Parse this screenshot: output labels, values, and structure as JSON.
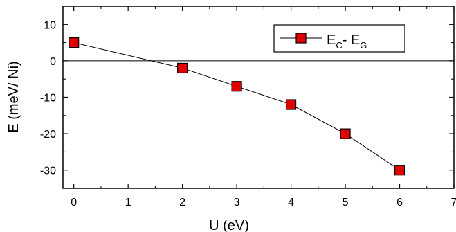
{
  "chart_data": {
    "type": "line",
    "xlabel": "U (eV)",
    "ylabel": "E (meV/ Ni)",
    "xlim": [
      -0.2,
      7
    ],
    "ylim": [
      -35,
      15
    ],
    "x_ticks": [
      0,
      1,
      2,
      3,
      4,
      5,
      6,
      7
    ],
    "y_ticks": [
      10,
      0,
      -10,
      -20,
      -30
    ],
    "grid": false,
    "reference_line": {
      "y": 0
    },
    "legend": {
      "placement": "top-right",
      "label_parts": [
        "E",
        "C",
        "- E",
        "G"
      ]
    },
    "series": [
      {
        "name": "E_C - E_G",
        "marker": "square",
        "color": "#e00000",
        "points": [
          {
            "x": 0,
            "y": 5
          },
          {
            "x": 2,
            "y": -2
          },
          {
            "x": 3,
            "y": -7
          },
          {
            "x": 4,
            "y": -12
          },
          {
            "x": 5,
            "y": -20
          },
          {
            "x": 6,
            "y": -30
          }
        ]
      }
    ]
  }
}
